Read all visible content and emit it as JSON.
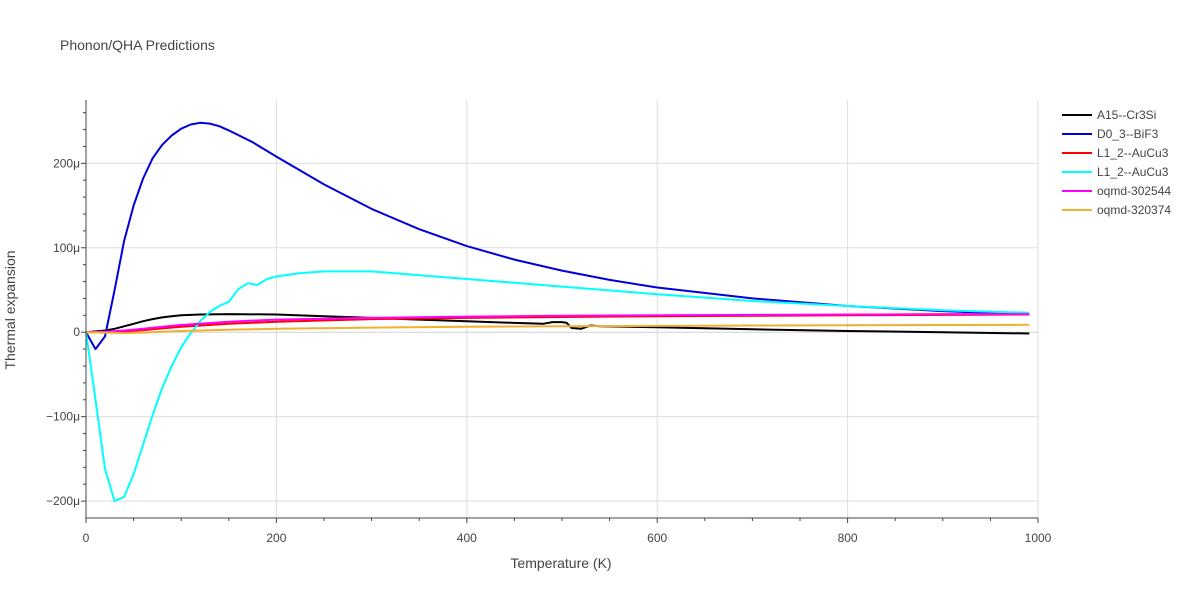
{
  "chart_data": {
    "type": "line",
    "title": "Phonon/QHA Predictions",
    "xlabel": "Temperature (K)",
    "ylabel": "Thermal expansion",
    "xlim": [
      0,
      1000
    ],
    "ylim": [
      -220,
      275
    ],
    "y_unit_scale": "micro (1e-6)",
    "x_ticks": [
      0,
      200,
      400,
      600,
      800,
      1000
    ],
    "x_tick_labels": [
      "0",
      "200",
      "400",
      "600",
      "800",
      "1000"
    ],
    "y_ticks": [
      -200,
      -100,
      0,
      100,
      200
    ],
    "y_tick_labels": [
      "−200μ",
      "−100μ",
      "0",
      "100μ",
      "200μ"
    ],
    "grid": true,
    "legend_position": "top-right",
    "series": [
      {
        "name": "A15--Cr3Si",
        "color": "#000000",
        "x": [
          0,
          10,
          20,
          30,
          40,
          50,
          60,
          70,
          80,
          90,
          100,
          120,
          150,
          200,
          250,
          300,
          350,
          400,
          450,
          480,
          490,
          500,
          505,
          510,
          520,
          530,
          540,
          600,
          700,
          800,
          900,
          990
        ],
        "y": [
          0,
          1,
          2,
          4,
          7,
          10,
          13,
          15.5,
          17.5,
          19,
          20,
          21,
          21.5,
          21,
          19,
          17,
          15,
          13,
          11,
          10,
          12,
          12,
          11,
          5,
          4,
          8,
          7,
          6,
          3.5,
          1.5,
          0,
          -1.5
        ]
      },
      {
        "name": "D0_3--BiF3",
        "color": "#0000dd",
        "x": [
          0,
          10,
          20,
          30,
          40,
          50,
          60,
          70,
          80,
          90,
          100,
          110,
          120,
          130,
          140,
          150,
          175,
          200,
          250,
          300,
          350,
          400,
          450,
          500,
          550,
          600,
          700,
          800,
          900,
          990
        ],
        "y": [
          0,
          -20,
          -5,
          50,
          108,
          150,
          182,
          206,
          222,
          233,
          241,
          246,
          248,
          247,
          244,
          239,
          225,
          208,
          175,
          146,
          122,
          102,
          86,
          73,
          62,
          53,
          40,
          31,
          25,
          21
        ]
      },
      {
        "name": "L1_2--AuCu3",
        "color": "#ff0000",
        "x": [
          0,
          20,
          40,
          60,
          80,
          100,
          150,
          200,
          300,
          400,
          500,
          600,
          700,
          800,
          900,
          990
        ],
        "y": [
          0,
          -0.5,
          1,
          2.5,
          4.5,
          6.5,
          10,
          12.5,
          15.5,
          17,
          18,
          19,
          19.5,
          20,
          20.5,
          21
        ]
      },
      {
        "name": "L1_2--AuCu3",
        "color": "#00ffff",
        "x": [
          0,
          10,
          20,
          30,
          40,
          50,
          60,
          70,
          80,
          90,
          100,
          110,
          120,
          130,
          140,
          150,
          160,
          170,
          180,
          190,
          200,
          225,
          250,
          300,
          400,
          500,
          600,
          700,
          800,
          900,
          990
        ],
        "y": [
          0,
          -80,
          -162,
          -200,
          -195,
          -168,
          -133,
          -98,
          -66,
          -40,
          -18,
          -1,
          13,
          24,
          31,
          36,
          51,
          58,
          56,
          63,
          66,
          70,
          72,
          72,
          63,
          54,
          45,
          37,
          31,
          26,
          23
        ]
      },
      {
        "name": "oqmd-302544",
        "color": "#ff00ff",
        "x": [
          0,
          20,
          40,
          60,
          80,
          100,
          150,
          200,
          300,
          400,
          500,
          600,
          700,
          800,
          900,
          990
        ],
        "y": [
          0,
          0.5,
          2,
          4,
          6.5,
          8.5,
          12.5,
          15,
          17,
          18.5,
          19.5,
          20,
          20.5,
          21,
          21.5,
          21.5
        ]
      },
      {
        "name": "oqmd-320374",
        "color": "#f0b030",
        "x": [
          0,
          20,
          40,
          60,
          80,
          100,
          150,
          200,
          300,
          400,
          500,
          600,
          700,
          800,
          900,
          990
        ],
        "y": [
          0,
          -0.5,
          -1,
          -0.5,
          0.5,
          1.5,
          3,
          4,
          5.5,
          6.5,
          7,
          7.5,
          8,
          8.3,
          8.5,
          8.8
        ]
      }
    ]
  }
}
